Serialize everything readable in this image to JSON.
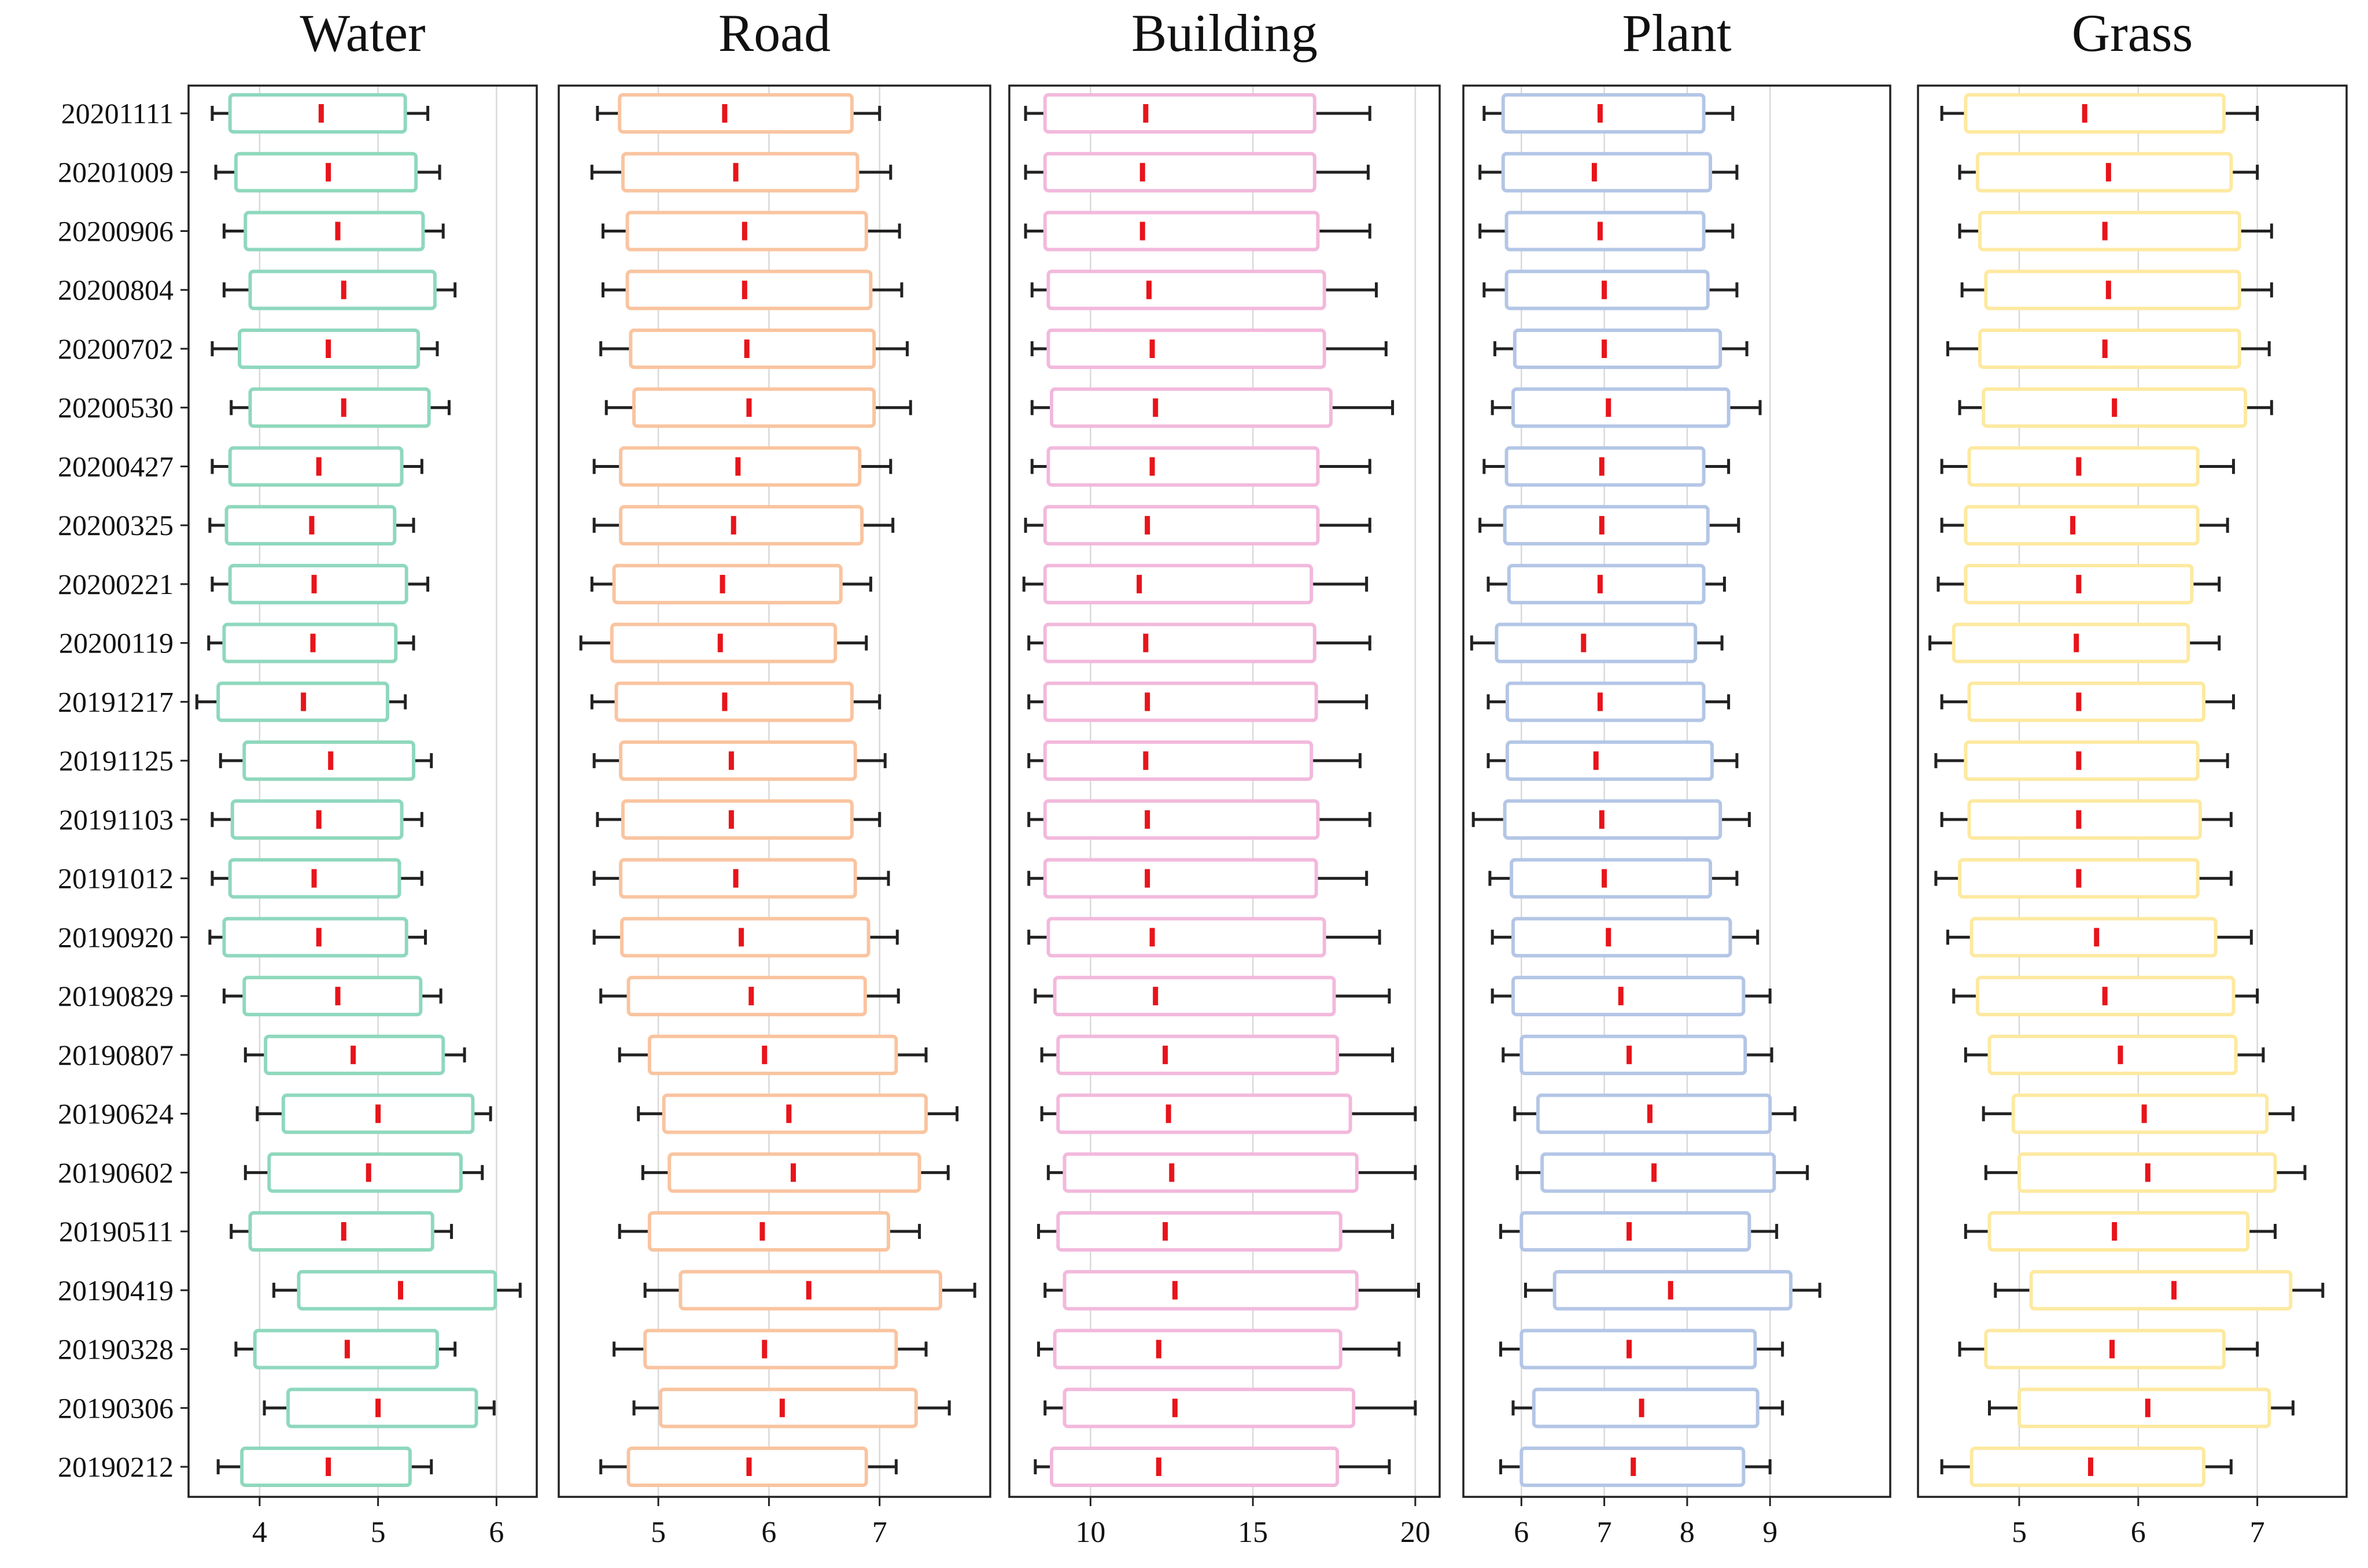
{
  "chart_data": {
    "type": "box",
    "orientation": "horizontal",
    "dates": [
      "20201111",
      "20201009",
      "20200906",
      "20200804",
      "20200702",
      "20200530",
      "20200427",
      "20200325",
      "20200221",
      "20200119",
      "20191217",
      "20191125",
      "20191103",
      "20191012",
      "20190920",
      "20190829",
      "20190807",
      "20190624",
      "20190602",
      "20190511",
      "20190419",
      "20190328",
      "20190306",
      "20190212"
    ],
    "panels": [
      {
        "title": "Water",
        "color": "#8fd8bd",
        "xlim": [
          3.4,
          6.34
        ],
        "ticks": [
          4,
          5,
          6
        ],
        "boxes": [
          [
            3.6,
            3.75,
            4.52,
            5.23,
            5.42
          ],
          [
            3.63,
            3.8,
            4.58,
            5.32,
            5.52
          ],
          [
            3.7,
            3.88,
            4.66,
            5.38,
            5.55
          ],
          [
            3.7,
            3.92,
            4.71,
            5.48,
            5.65
          ],
          [
            3.6,
            3.83,
            4.58,
            5.34,
            5.5
          ],
          [
            3.76,
            3.92,
            4.71,
            5.43,
            5.6
          ],
          [
            3.6,
            3.75,
            4.5,
            5.2,
            5.37
          ],
          [
            3.58,
            3.72,
            4.44,
            5.14,
            5.3
          ],
          [
            3.6,
            3.75,
            4.46,
            5.24,
            5.42
          ],
          [
            3.57,
            3.7,
            4.45,
            5.15,
            5.3
          ],
          [
            3.47,
            3.65,
            4.37,
            5.08,
            5.23
          ],
          [
            3.67,
            3.87,
            4.6,
            5.3,
            5.45
          ],
          [
            3.6,
            3.77,
            4.5,
            5.2,
            5.37
          ],
          [
            3.6,
            3.75,
            4.46,
            5.18,
            5.37
          ],
          [
            3.58,
            3.7,
            4.5,
            5.24,
            5.4
          ],
          [
            3.7,
            3.87,
            4.66,
            5.36,
            5.53
          ],
          [
            3.88,
            4.05,
            4.79,
            5.55,
            5.73
          ],
          [
            3.98,
            4.2,
            5.0,
            5.8,
            5.95
          ],
          [
            3.88,
            4.08,
            4.92,
            5.7,
            5.88
          ],
          [
            3.76,
            3.92,
            4.71,
            5.46,
            5.62
          ],
          [
            4.12,
            4.33,
            5.19,
            5.99,
            6.2
          ],
          [
            3.8,
            3.96,
            4.74,
            5.5,
            5.65
          ],
          [
            4.04,
            4.24,
            5.0,
            5.83,
            5.98
          ],
          [
            3.65,
            3.85,
            4.58,
            5.27,
            5.45
          ]
        ]
      },
      {
        "title": "Road",
        "color": "#f9c4a0",
        "xlim": [
          4.1,
          8.0
        ],
        "ticks": [
          5,
          6,
          7
        ],
        "boxes": [
          [
            4.45,
            4.65,
            5.6,
            6.75,
            7.0
          ],
          [
            4.4,
            4.68,
            5.7,
            6.8,
            7.1
          ],
          [
            4.5,
            4.72,
            5.78,
            6.88,
            7.18
          ],
          [
            4.5,
            4.72,
            5.78,
            6.92,
            7.2
          ],
          [
            4.48,
            4.75,
            5.8,
            6.95,
            7.25
          ],
          [
            4.53,
            4.78,
            5.82,
            6.95,
            7.28
          ],
          [
            4.42,
            4.66,
            5.72,
            6.82,
            7.1
          ],
          [
            4.42,
            4.66,
            5.68,
            6.84,
            7.12
          ],
          [
            4.4,
            4.6,
            5.58,
            6.65,
            6.92
          ],
          [
            4.3,
            4.58,
            5.56,
            6.6,
            6.88
          ],
          [
            4.4,
            4.62,
            5.6,
            6.75,
            7.0
          ],
          [
            4.42,
            4.66,
            5.66,
            6.78,
            7.05
          ],
          [
            4.45,
            4.68,
            5.66,
            6.75,
            7.0
          ],
          [
            4.42,
            4.66,
            5.7,
            6.78,
            7.08
          ],
          [
            4.42,
            4.67,
            5.75,
            6.9,
            7.16
          ],
          [
            4.48,
            4.73,
            5.84,
            6.87,
            7.17
          ],
          [
            4.65,
            4.92,
            5.96,
            7.15,
            7.42
          ],
          [
            4.82,
            5.05,
            6.18,
            7.42,
            7.7
          ],
          [
            4.86,
            5.1,
            6.22,
            7.36,
            7.62
          ],
          [
            4.65,
            4.92,
            5.94,
            7.08,
            7.36
          ],
          [
            4.88,
            5.2,
            6.36,
            7.55,
            7.86
          ],
          [
            4.6,
            4.88,
            5.96,
            7.15,
            7.42
          ],
          [
            4.78,
            5.02,
            6.12,
            7.33,
            7.63
          ],
          [
            4.48,
            4.73,
            5.82,
            6.88,
            7.15
          ]
        ]
      },
      {
        "title": "Building",
        "color": "#f2b9dc",
        "xlim": [
          7.5,
          20.75
        ],
        "ticks": [
          10,
          15,
          20
        ],
        "boxes": [
          [
            8.0,
            8.6,
            11.7,
            16.9,
            18.6
          ],
          [
            8.0,
            8.6,
            11.6,
            16.9,
            18.55
          ],
          [
            8.0,
            8.6,
            11.6,
            17.0,
            18.6
          ],
          [
            8.2,
            8.7,
            11.8,
            17.2,
            18.8
          ],
          [
            8.2,
            8.7,
            11.9,
            17.2,
            19.1
          ],
          [
            8.2,
            8.8,
            12.0,
            17.4,
            19.3
          ],
          [
            8.2,
            8.7,
            11.9,
            17.0,
            18.6
          ],
          [
            8.0,
            8.6,
            11.75,
            17.0,
            18.6
          ],
          [
            7.95,
            8.6,
            11.5,
            16.8,
            18.5
          ],
          [
            8.1,
            8.6,
            11.7,
            16.9,
            18.6
          ],
          [
            8.1,
            8.6,
            11.75,
            16.95,
            18.5
          ],
          [
            8.1,
            8.6,
            11.7,
            16.8,
            18.3
          ],
          [
            8.1,
            8.6,
            11.75,
            17.0,
            18.6
          ],
          [
            8.1,
            8.6,
            11.75,
            16.95,
            18.5
          ],
          [
            8.1,
            8.7,
            11.9,
            17.2,
            18.9
          ],
          [
            8.3,
            8.9,
            12.0,
            17.5,
            19.2
          ],
          [
            8.5,
            9.0,
            12.3,
            17.6,
            19.3
          ],
          [
            8.5,
            9.0,
            12.4,
            18.0,
            20.0
          ],
          [
            8.7,
            9.2,
            12.5,
            18.2,
            20.0
          ],
          [
            8.4,
            9.0,
            12.3,
            17.7,
            19.3
          ],
          [
            8.6,
            9.2,
            12.6,
            18.2,
            20.1
          ],
          [
            8.4,
            8.9,
            12.1,
            17.7,
            19.5
          ],
          [
            8.6,
            9.2,
            12.6,
            18.1,
            20.0
          ],
          [
            8.3,
            8.8,
            12.1,
            17.6,
            19.2
          ]
        ]
      },
      {
        "title": "Plant",
        "color": "#b4c6e6",
        "xlim": [
          5.3,
          10.45
        ],
        "ticks": [
          6,
          7,
          8,
          9
        ],
        "boxes": [
          [
            5.55,
            5.78,
            6.95,
            8.2,
            8.55
          ],
          [
            5.5,
            5.78,
            6.88,
            8.28,
            8.6
          ],
          [
            5.5,
            5.82,
            6.95,
            8.2,
            8.55
          ],
          [
            5.55,
            5.82,
            7.0,
            8.25,
            8.6
          ],
          [
            5.68,
            5.92,
            7.0,
            8.4,
            8.72
          ],
          [
            5.65,
            5.9,
            7.05,
            8.5,
            8.88
          ],
          [
            5.55,
            5.82,
            6.97,
            8.2,
            8.5
          ],
          [
            5.5,
            5.8,
            6.97,
            8.25,
            8.62
          ],
          [
            5.6,
            5.85,
            6.95,
            8.2,
            8.45
          ],
          [
            5.4,
            5.7,
            6.75,
            8.1,
            8.42
          ],
          [
            5.6,
            5.83,
            6.95,
            8.2,
            8.5
          ],
          [
            5.6,
            5.83,
            6.9,
            8.3,
            8.6
          ],
          [
            5.42,
            5.8,
            6.97,
            8.4,
            8.75
          ],
          [
            5.62,
            5.88,
            7.0,
            8.28,
            8.6
          ],
          [
            5.65,
            5.9,
            7.05,
            8.52,
            8.85
          ],
          [
            5.65,
            5.9,
            7.2,
            8.68,
            9.0
          ],
          [
            5.78,
            6.0,
            7.3,
            8.7,
            9.02
          ],
          [
            5.92,
            6.2,
            7.55,
            9.0,
            9.3
          ],
          [
            5.95,
            6.25,
            7.6,
            9.05,
            9.45
          ],
          [
            5.75,
            6.0,
            7.3,
            8.75,
            9.08
          ],
          [
            6.05,
            6.4,
            7.8,
            9.25,
            9.6
          ],
          [
            5.75,
            6.0,
            7.3,
            8.82,
            9.15
          ],
          [
            5.9,
            6.15,
            7.45,
            8.85,
            9.15
          ],
          [
            5.75,
            6.0,
            7.35,
            8.68,
            9.0
          ]
        ]
      },
      {
        "title": "Grass",
        "color": "#fde9a0",
        "xlim": [
          4.15,
          7.75
        ],
        "ticks": [
          5,
          6,
          7
        ],
        "boxes": [
          [
            4.35,
            4.55,
            5.55,
            6.72,
            7.0
          ],
          [
            4.5,
            4.65,
            5.75,
            6.78,
            7.0
          ],
          [
            4.5,
            4.67,
            5.72,
            6.85,
            7.12
          ],
          [
            4.52,
            4.72,
            5.75,
            6.85,
            7.12
          ],
          [
            4.4,
            4.67,
            5.72,
            6.85,
            7.1
          ],
          [
            4.5,
            4.7,
            5.8,
            6.9,
            7.12
          ],
          [
            4.35,
            4.58,
            5.5,
            6.5,
            6.8
          ],
          [
            4.35,
            4.55,
            5.45,
            6.5,
            6.75
          ],
          [
            4.32,
            4.55,
            5.5,
            6.45,
            6.68
          ],
          [
            4.25,
            4.45,
            5.48,
            6.42,
            6.68
          ],
          [
            4.35,
            4.58,
            5.5,
            6.55,
            6.8
          ],
          [
            4.3,
            4.55,
            5.5,
            6.5,
            6.75
          ],
          [
            4.35,
            4.58,
            5.5,
            6.52,
            6.78
          ],
          [
            4.3,
            4.5,
            5.5,
            6.5,
            6.78
          ],
          [
            4.4,
            4.6,
            5.65,
            6.65,
            6.95
          ],
          [
            4.45,
            4.65,
            5.72,
            6.8,
            7.0
          ],
          [
            4.55,
            4.75,
            5.85,
            6.82,
            7.05
          ],
          [
            4.7,
            4.95,
            6.05,
            7.08,
            7.3
          ],
          [
            4.72,
            5.0,
            6.08,
            7.15,
            7.4
          ],
          [
            4.55,
            4.75,
            5.8,
            6.92,
            7.15
          ],
          [
            4.8,
            5.1,
            6.3,
            7.28,
            7.55
          ],
          [
            4.5,
            4.72,
            5.78,
            6.72,
            7.0
          ],
          [
            4.75,
            5.0,
            6.08,
            7.1,
            7.3
          ],
          [
            4.35,
            4.6,
            5.6,
            6.55,
            6.78
          ]
        ]
      }
    ]
  }
}
